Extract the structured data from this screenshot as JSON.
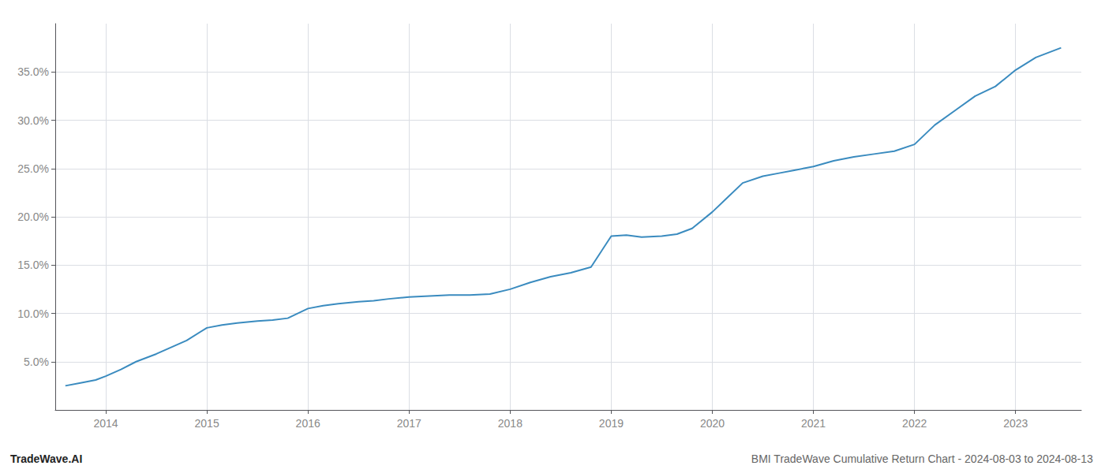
{
  "chart_data": {
    "type": "line",
    "title": "BMI TradeWave Cumulative Return Chart - 2024-08-03 to 2024-08-13",
    "annotations": [
      "TradeWave.AI"
    ],
    "x": [
      2013.6,
      2013.75,
      2013.9,
      2014.0,
      2014.15,
      2014.3,
      2014.5,
      2014.65,
      2014.8,
      2015.0,
      2015.15,
      2015.3,
      2015.5,
      2015.65,
      2015.8,
      2016.0,
      2016.15,
      2016.3,
      2016.5,
      2016.65,
      2016.8,
      2017.0,
      2017.2,
      2017.4,
      2017.6,
      2017.8,
      2018.0,
      2018.2,
      2018.4,
      2018.6,
      2018.8,
      2019.0,
      2019.15,
      2019.3,
      2019.5,
      2019.65,
      2019.8,
      2020.0,
      2020.15,
      2020.3,
      2020.5,
      2020.65,
      2020.8,
      2021.0,
      2021.2,
      2021.4,
      2021.6,
      2021.8,
      2022.0,
      2022.2,
      2022.4,
      2022.6,
      2022.8,
      2023.0,
      2023.2,
      2023.45
    ],
    "values": [
      2.5,
      2.8,
      3.1,
      3.5,
      4.2,
      5.0,
      5.8,
      6.5,
      7.2,
      8.5,
      8.8,
      9.0,
      9.2,
      9.3,
      9.5,
      10.5,
      10.8,
      11.0,
      11.2,
      11.3,
      11.5,
      11.7,
      11.8,
      11.9,
      11.9,
      12.0,
      12.5,
      13.2,
      13.8,
      14.2,
      14.8,
      18.0,
      18.1,
      17.9,
      18.0,
      18.2,
      18.8,
      20.5,
      22.0,
      23.5,
      24.2,
      24.5,
      24.8,
      25.2,
      25.8,
      26.2,
      26.5,
      26.8,
      27.5,
      29.5,
      31.0,
      32.5,
      33.5,
      35.2,
      36.5,
      37.5
    ],
    "color": "#3a8bbf",
    "xlim": [
      2013.5,
      2023.65
    ],
    "ylim": [
      0,
      40
    ],
    "xticks": [
      2014,
      2015,
      2016,
      2017,
      2018,
      2019,
      2020,
      2021,
      2022,
      2023
    ],
    "yticks": [
      {
        "value": 5.0,
        "label": "5.0%"
      },
      {
        "value": 10.0,
        "label": "10.0%"
      },
      {
        "value": 15.0,
        "label": "15.0%"
      },
      {
        "value": 20.0,
        "label": "20.0%"
      },
      {
        "value": 25.0,
        "label": "25.0%"
      },
      {
        "value": 30.0,
        "label": "30.0%"
      },
      {
        "value": 35.0,
        "label": "35.0%"
      }
    ],
    "grid": true
  }
}
